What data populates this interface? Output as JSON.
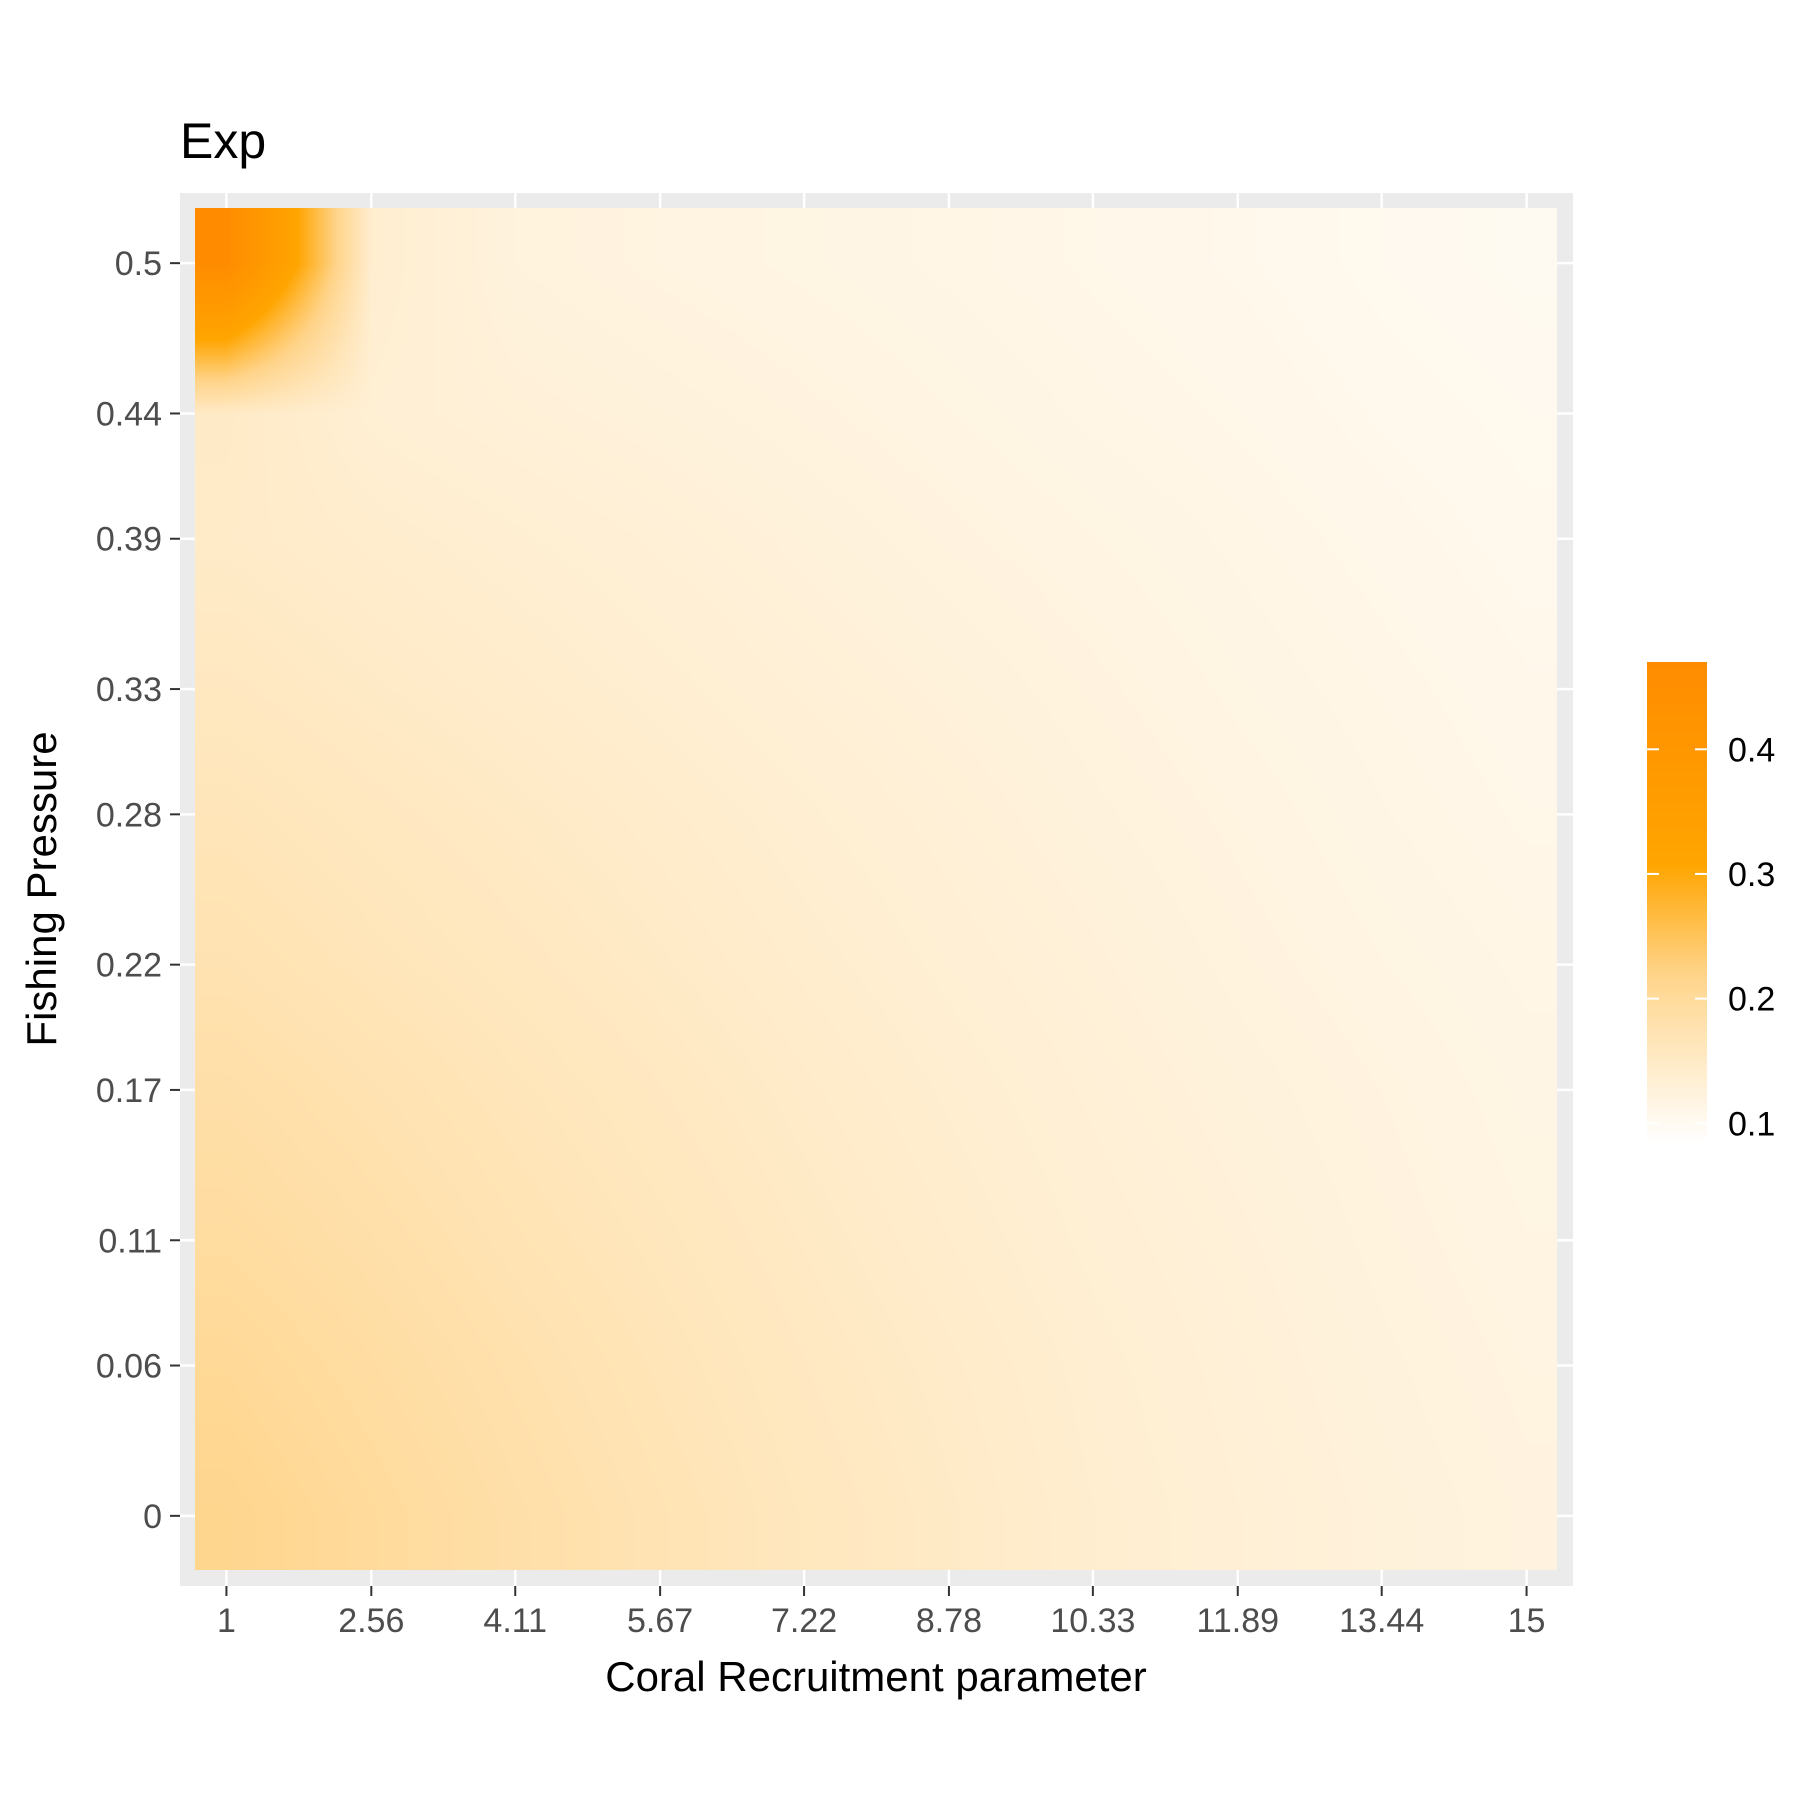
{
  "chart_data": {
    "type": "heatmap",
    "title": "Exp",
    "xlabel": "Coral Recruitment parameter",
    "ylabel": "Fishing Pressure",
    "x_ticks": [
      "1",
      "2.56",
      "4.11",
      "5.67",
      "7.22",
      "8.78",
      "10.33",
      "11.89",
      "13.44",
      "15"
    ],
    "y_ticks": [
      "0",
      "0.06",
      "0.11",
      "0.17",
      "0.22",
      "0.28",
      "0.33",
      "0.39",
      "0.44",
      "0.5"
    ],
    "x_values": [
      1,
      2.56,
      4.11,
      5.67,
      7.22,
      8.78,
      10.33,
      11.89,
      13.44,
      15
    ],
    "y_values": [
      0,
      0.06,
      0.11,
      0.17,
      0.22,
      0.28,
      0.33,
      0.39,
      0.44,
      0.5
    ],
    "z": [
      [
        0.215,
        0.2,
        0.185,
        0.172,
        0.16,
        0.15,
        0.14,
        0.133,
        0.127,
        0.122
      ],
      [
        0.205,
        0.192,
        0.179,
        0.167,
        0.156,
        0.147,
        0.138,
        0.131,
        0.125,
        0.12
      ],
      [
        0.195,
        0.184,
        0.172,
        0.162,
        0.152,
        0.143,
        0.135,
        0.129,
        0.123,
        0.118
      ],
      [
        0.185,
        0.175,
        0.165,
        0.156,
        0.147,
        0.139,
        0.132,
        0.126,
        0.121,
        0.116
      ],
      [
        0.175,
        0.166,
        0.158,
        0.15,
        0.142,
        0.135,
        0.129,
        0.123,
        0.118,
        0.114
      ],
      [
        0.166,
        0.158,
        0.151,
        0.144,
        0.137,
        0.131,
        0.125,
        0.12,
        0.115,
        0.111
      ],
      [
        0.157,
        0.15,
        0.144,
        0.138,
        0.132,
        0.127,
        0.122,
        0.117,
        0.113,
        0.109
      ],
      [
        0.148,
        0.142,
        0.137,
        0.132,
        0.127,
        0.122,
        0.118,
        0.114,
        0.11,
        0.106
      ],
      [
        0.15,
        0.135,
        0.13,
        0.126,
        0.122,
        0.118,
        0.114,
        0.111,
        0.107,
        0.104
      ],
      [
        0.47,
        0.14,
        0.124,
        0.12,
        0.117,
        0.114,
        0.111,
        0.108,
        0.104,
        0.101
      ]
    ],
    "xlim": [
      0.5,
      15.5
    ],
    "ylim": [
      -0.028,
      0.528
    ],
    "legend": {
      "position": "right",
      "title": "",
      "breaks": [
        "0.4",
        "0.3",
        "0.2",
        "0.1"
      ],
      "break_values": [
        0.4,
        0.3,
        0.2,
        0.1
      ],
      "range": [
        0.085,
        0.47
      ],
      "colors": [
        "#ffffff",
        "#ffd48a",
        "#ffa500",
        "#ff8c00"
      ],
      "color_stops": [
        0.0,
        0.35,
        0.58,
        1.0
      ]
    },
    "grid": true,
    "panel_background": "#ebebeb",
    "grid_color": "#ffffff"
  }
}
